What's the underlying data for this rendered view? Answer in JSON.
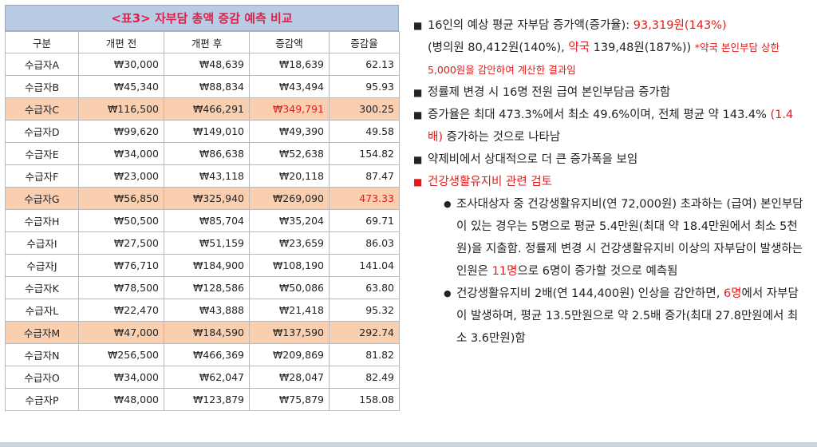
{
  "table": {
    "title": "<표3> 자부담 총액 증감 예측 비교",
    "headers": [
      "구분",
      "개편 전",
      "개편 후",
      "증감액",
      "증감율"
    ],
    "rows": [
      {
        "name": "수급자A",
        "before": "₩30,000",
        "after": "₩48,639",
        "diff": "₩18,639",
        "rate": "62.13",
        "highlight": false
      },
      {
        "name": "수급자B",
        "before": "₩45,340",
        "after": "₩88,834",
        "diff": "₩43,494",
        "rate": "95.93",
        "highlight": false
      },
      {
        "name": "수급자C",
        "before": "₩116,500",
        "after": "₩466,291",
        "diff": "₩349,791",
        "rate": "300.25",
        "highlight": true,
        "diff_red": true
      },
      {
        "name": "수급자D",
        "before": "₩99,620",
        "after": "₩149,010",
        "diff": "₩49,390",
        "rate": "49.58",
        "highlight": false
      },
      {
        "name": "수급자E",
        "before": "₩34,000",
        "after": "₩86,638",
        "diff": "₩52,638",
        "rate": "154.82",
        "highlight": false
      },
      {
        "name": "수급자F",
        "before": "₩23,000",
        "after": "₩43,118",
        "diff": "₩20,118",
        "rate": "87.47",
        "highlight": false
      },
      {
        "name": "수급자G",
        "before": "₩56,850",
        "after": "₩325,940",
        "diff": "₩269,090",
        "rate": "473.33",
        "highlight": true,
        "rate_red": true
      },
      {
        "name": "수급자H",
        "before": "₩50,500",
        "after": "₩85,704",
        "diff": "₩35,204",
        "rate": "69.71",
        "highlight": false
      },
      {
        "name": "수급자I",
        "before": "₩27,500",
        "after": "₩51,159",
        "diff": "₩23,659",
        "rate": "86.03",
        "highlight": false
      },
      {
        "name": "수급자J",
        "before": "₩76,710",
        "after": "₩184,900",
        "diff": "₩108,190",
        "rate": "141.04",
        "highlight": false
      },
      {
        "name": "수급자K",
        "before": "₩78,500",
        "after": "₩128,586",
        "diff": "₩50,086",
        "rate": "63.80",
        "highlight": false
      },
      {
        "name": "수급자L",
        "before": "₩22,470",
        "after": "₩43,888",
        "diff": "₩21,418",
        "rate": "95.32",
        "highlight": false
      },
      {
        "name": "수급자M",
        "before": "₩47,000",
        "after": "₩184,590",
        "diff": "₩137,590",
        "rate": "292.74",
        "highlight": true
      },
      {
        "name": "수급자N",
        "before": "₩256,500",
        "after": "₩466,369",
        "diff": "₩209,869",
        "rate": "81.82",
        "highlight": false
      },
      {
        "name": "수급자O",
        "before": "₩34,000",
        "after": "₩62,047",
        "diff": "₩28,047",
        "rate": "82.49",
        "highlight": false
      },
      {
        "name": "수급자P",
        "before": "₩48,000",
        "after": "₩123,879",
        "diff": "₩75,879",
        "rate": "158.08",
        "highlight": false
      }
    ]
  },
  "notes": {
    "b1": {
      "t1": "16인의 예상 평균 자부담 증가액(증가율): ",
      "t2": "93,319원(143%)",
      "t3": "(병의원 80,412원(140%), ",
      "t4": "약국",
      "t5": " 139,48원(187%)) ",
      "t6": "*약국 본인부담 상한 5,000원을 감안하여 계산한 결과임"
    },
    "b2": "정률제 변경 시 16명 전원 급여 본인부담금 증가함",
    "b3": {
      "t1": "증가율은 최대 473.3%에서 최소 49.6%이며, 전체 평균 약 143.4% ",
      "t2": "(1.4배)",
      "t3": " 증가하는 것으로 나타남"
    },
    "b4": "약제비에서 상대적으로 더 큰 증가폭을 보임",
    "b5": "건강생활유지비 관련 검토",
    "s1": {
      "t1": "조사대상자 중 건강생활유지비(연 72,000원) 초과하는 (급여) 본인부담이 있는 경우는 5명으로 평균 5.4만원(최대 약 18.4만원에서 최소 5천원)을 지출함. 정률제 변경 시 건강생활유지비 이상의 자부담이 발생하는 인원은 ",
      "t2": "11명",
      "t3": "으로 6명이 증가할 것으로 예측됨"
    },
    "s2": {
      "t1": "건강생활유지비 2배(연 144,400원) 인상을 감안하면, ",
      "t2": "6명",
      "t3": "에서 자부담이 발생하며, 평균 13.5만원으로 약 2.5배 증가(최대 27.8만원에서 최소 3.6만원)함"
    }
  }
}
